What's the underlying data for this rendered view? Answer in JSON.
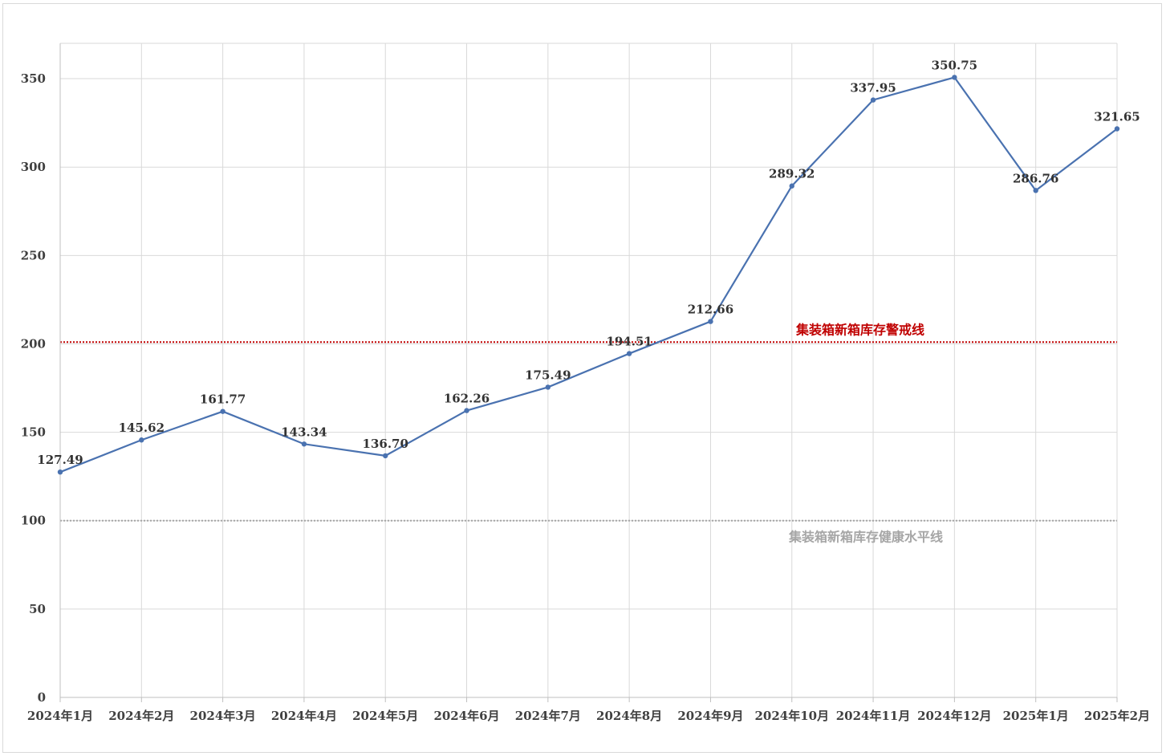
{
  "chart_data": {
    "type": "line",
    "title": "",
    "xlabel": "",
    "ylabel": "",
    "categories": [
      "2024年1月",
      "2024年2月",
      "2024年3月",
      "2024年4月",
      "2024年5月",
      "2024年6月",
      "2024年7月",
      "2024年8月",
      "2024年9月",
      "2024年10月",
      "2024年11月",
      "2024年12月",
      "2025年1月",
      "2025年2月"
    ],
    "series": [
      {
        "values": [
          127.49,
          145.62,
          161.77,
          143.34,
          136.7,
          162.26,
          175.49,
          194.51,
          212.66,
          289.32,
          337.95,
          350.75,
          286.76,
          321.65
        ],
        "labels": [
          "127.49",
          "145.62",
          "161.77",
          "143.34",
          "136.70",
          "162.26",
          "175.49",
          "194.51",
          "212.66",
          "289.32",
          "337.95",
          "350.75",
          "286.76",
          "321.65"
        ],
        "color": "#4a72b0"
      }
    ],
    "ylim": [
      0,
      370
    ],
    "yticks": [
      0,
      50,
      100,
      150,
      200,
      250,
      300,
      350
    ],
    "grid": true,
    "reference_lines": [
      {
        "value": 201,
        "label": "集装箱新箱库存警戒线",
        "color": "#c00000"
      },
      {
        "value": 100,
        "label": "集装箱新箱库存健康水平线",
        "color": "#a6a6a6"
      }
    ]
  }
}
